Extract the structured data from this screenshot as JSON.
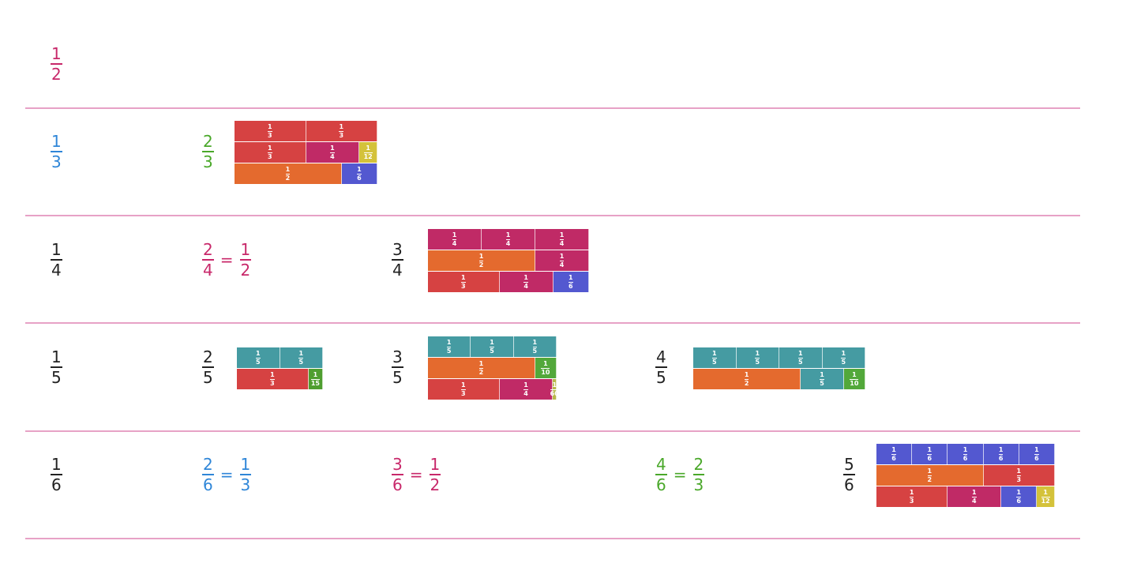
{
  "colors": {
    "divider": "#e7a2c6",
    "black": "#222222",
    "pink": "#c8286a",
    "blue": "#2f86d8",
    "green": "#4aa82a",
    "seg": {
      "1/2": "#e46a2e",
      "1/3": "#d64242",
      "1/4": "#c02a66",
      "1/5": "#459ba2",
      "1/6": "#5358d0",
      "1/10": "#52a83a",
      "1/12": "#d4c23a",
      "1/15": "#4f9e30",
      "1/60": "#b8b84a"
    }
  },
  "rows": [
    {
      "unit": {
        "num": "1",
        "den": "2",
        "color": "pink"
      },
      "cells": []
    },
    {
      "unit": {
        "num": "1",
        "den": "3",
        "color": "blue"
      },
      "cells": [
        {
          "frac": {
            "num": "2",
            "den": "3",
            "color": "green"
          },
          "strip": [
            [
              {
                "n": "1",
                "d": "3"
              },
              {
                "n": "1",
                "d": "3"
              }
            ],
            [
              {
                "n": "1",
                "d": "3"
              },
              {
                "n": "1",
                "d": "4"
              },
              {
                "n": "1",
                "d": "12"
              }
            ],
            [
              {
                "n": "1",
                "d": "2"
              },
              {
                "n": "1",
                "d": "6"
              }
            ]
          ]
        }
      ]
    },
    {
      "unit": {
        "num": "1",
        "den": "4",
        "color": "black"
      },
      "cells": [
        {
          "frac": {
            "num": "2",
            "den": "4",
            "color": "pink"
          },
          "equals": {
            "num": "1",
            "den": "2",
            "color": "pink"
          }
        },
        {
          "frac": {
            "num": "3",
            "den": "4",
            "color": "black"
          },
          "strip": [
            [
              {
                "n": "1",
                "d": "4"
              },
              {
                "n": "1",
                "d": "4"
              },
              {
                "n": "1",
                "d": "4"
              }
            ],
            [
              {
                "n": "1",
                "d": "2"
              },
              {
                "n": "1",
                "d": "4"
              }
            ],
            [
              {
                "n": "1",
                "d": "3"
              },
              {
                "n": "1",
                "d": "4"
              },
              {
                "n": "1",
                "d": "6"
              }
            ]
          ]
        }
      ]
    },
    {
      "unit": {
        "num": "1",
        "den": "5",
        "color": "black"
      },
      "cells": [
        {
          "frac": {
            "num": "2",
            "den": "5",
            "color": "black"
          },
          "strip": [
            [
              {
                "n": "1",
                "d": "5"
              },
              {
                "n": "1",
                "d": "5"
              }
            ],
            [
              {
                "n": "1",
                "d": "3"
              },
              {
                "n": "1",
                "d": "15"
              }
            ]
          ]
        },
        {
          "frac": {
            "num": "3",
            "den": "5",
            "color": "black"
          },
          "strip": [
            [
              {
                "n": "1",
                "d": "5"
              },
              {
                "n": "1",
                "d": "5"
              },
              {
                "n": "1",
                "d": "5"
              }
            ],
            [
              {
                "n": "1",
                "d": "2"
              },
              {
                "n": "1",
                "d": "10"
              }
            ],
            [
              {
                "n": "1",
                "d": "3"
              },
              {
                "n": "1",
                "d": "4"
              },
              {
                "n": "1",
                "d": "60"
              }
            ]
          ]
        },
        {
          "frac": {
            "num": "4",
            "den": "5",
            "color": "black"
          },
          "strip": [
            [
              {
                "n": "1",
                "d": "5"
              },
              {
                "n": "1",
                "d": "5"
              },
              {
                "n": "1",
                "d": "5"
              },
              {
                "n": "1",
                "d": "5"
              }
            ],
            [
              {
                "n": "1",
                "d": "2"
              },
              {
                "n": "1",
                "d": "5"
              },
              {
                "n": "1",
                "d": "10"
              }
            ]
          ]
        }
      ]
    },
    {
      "unit": {
        "num": "1",
        "den": "6",
        "color": "black"
      },
      "cells": [
        {
          "frac": {
            "num": "2",
            "den": "6",
            "color": "blue"
          },
          "equals": {
            "num": "1",
            "den": "3",
            "color": "blue"
          }
        },
        {
          "frac": {
            "num": "3",
            "den": "6",
            "color": "pink"
          },
          "equals": {
            "num": "1",
            "den": "2",
            "color": "pink"
          }
        },
        {
          "frac": {
            "num": "4",
            "den": "6",
            "color": "green"
          },
          "equals": {
            "num": "2",
            "den": "3",
            "color": "green"
          }
        },
        {
          "frac": {
            "num": "5",
            "den": "6",
            "color": "black"
          },
          "strip": [
            [
              {
                "n": "1",
                "d": "6"
              },
              {
                "n": "1",
                "d": "6"
              },
              {
                "n": "1",
                "d": "6"
              },
              {
                "n": "1",
                "d": "6"
              },
              {
                "n": "1",
                "d": "6"
              }
            ],
            [
              {
                "n": "1",
                "d": "2"
              },
              {
                "n": "1",
                "d": "3"
              }
            ],
            [
              {
                "n": "1",
                "d": "3"
              },
              {
                "n": "1",
                "d": "4"
              },
              {
                "n": "1",
                "d": "6"
              },
              {
                "n": "1",
                "d": "12"
              }
            ]
          ]
        }
      ]
    }
  ],
  "equals_sign": "="
}
